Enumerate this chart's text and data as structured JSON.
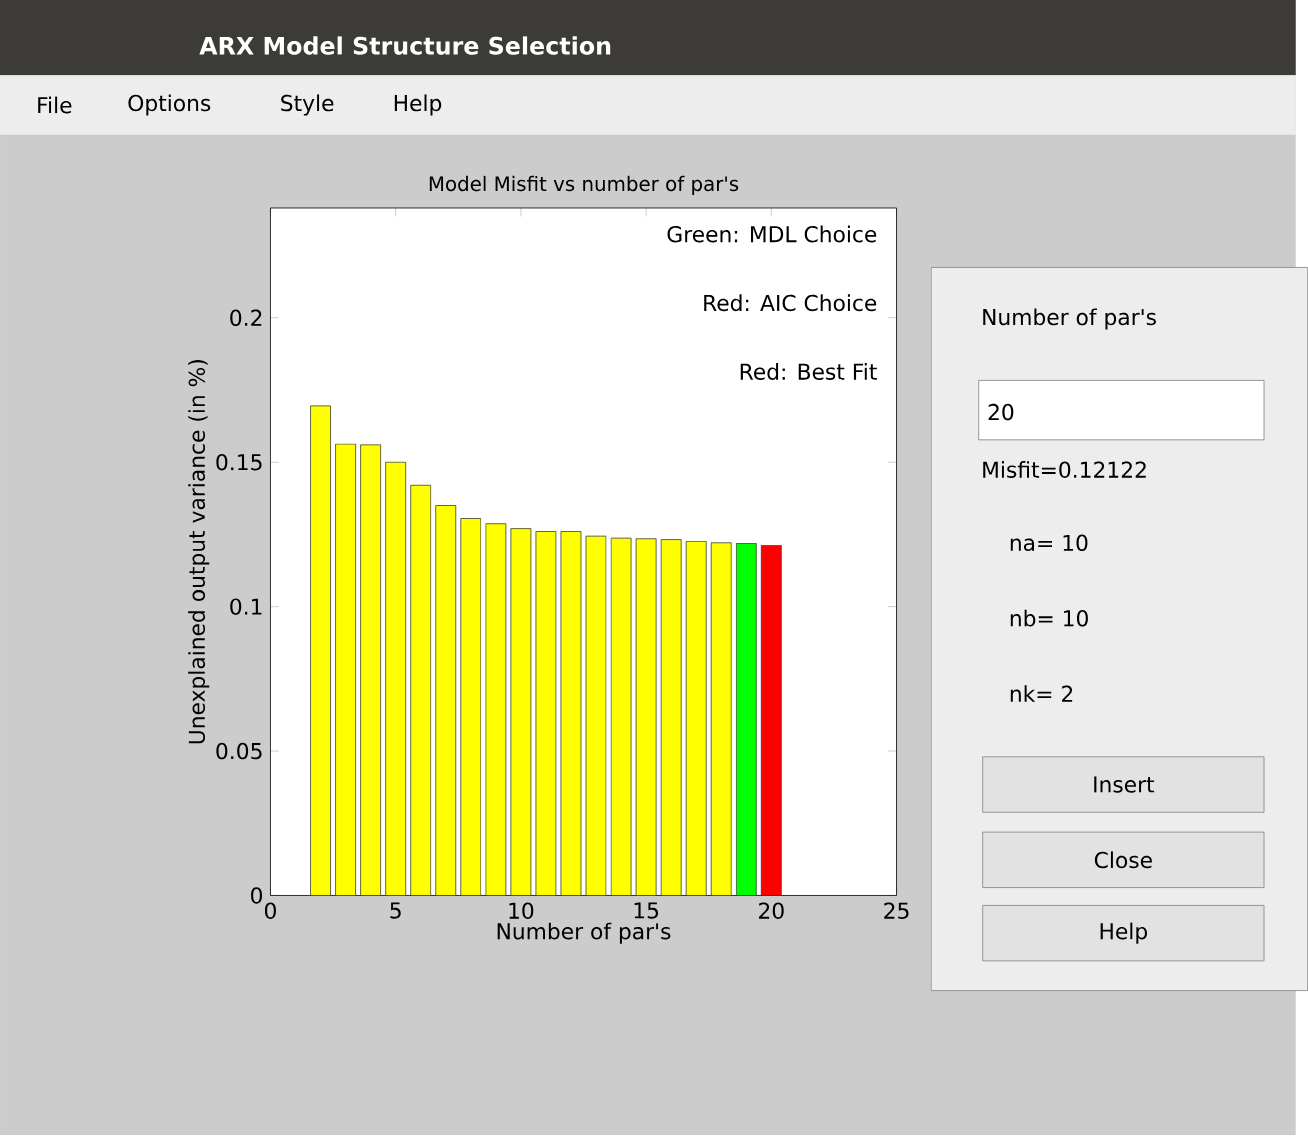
{
  "chart_data": {
    "type": "bar",
    "title": "Model Misfit vs number of par's",
    "xlabel": "Number of par's",
    "ylabel": "Unexplained output variance (in %)",
    "x": [
      2,
      3,
      4,
      5,
      6,
      7,
      8,
      9,
      10,
      11,
      12,
      13,
      14,
      15,
      16,
      17,
      18,
      19,
      20
    ],
    "values": [
      0.1695,
      0.1563,
      0.156,
      0.15,
      0.142,
      0.135,
      0.1305,
      0.1287,
      0.127,
      0.126,
      0.126,
      0.1244,
      0.1237,
      0.1235,
      0.1232,
      0.1226,
      0.1221,
      0.1219,
      0.1212
    ],
    "colors": [
      "#ffff00",
      "#ffff00",
      "#ffff00",
      "#ffff00",
      "#ffff00",
      "#ffff00",
      "#ffff00",
      "#ffff00",
      "#ffff00",
      "#ffff00",
      "#ffff00",
      "#ffff00",
      "#ffff00",
      "#ffff00",
      "#ffff00",
      "#ffff00",
      "#ffff00",
      "#00ff00",
      "#ff0000"
    ],
    "xlim": [
      0,
      25
    ],
    "ylim": [
      0,
      0.238
    ],
    "xticks": [
      0,
      5,
      10,
      15,
      20,
      25
    ],
    "yticks": [
      0,
      0.05,
      0.1,
      0.15,
      0.2
    ],
    "grid": false,
    "annotations": [
      "Green: MDL Choice",
      "Red: AIC Choice",
      "Red: Best Fit",
      "ARX Model Structure Selection",
      "File",
      "Options",
      "Style",
      "Help",
      "Number of par's",
      "20",
      "Misfit=0.12122",
      "na= 10",
      "nb= 10",
      "nk= 2",
      "Insert",
      "Close",
      "Help"
    ]
  }
}
